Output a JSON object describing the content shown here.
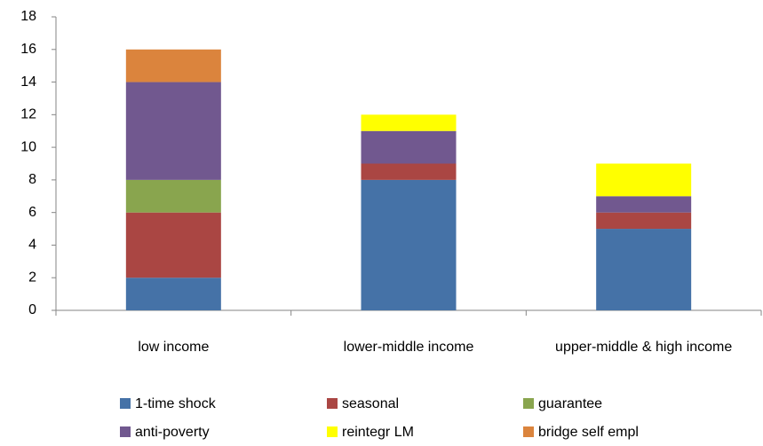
{
  "chart_data": {
    "type": "stacked-bar",
    "categories": [
      "low income",
      "lower-middle income",
      "upper-middle & high income"
    ],
    "series": [
      {
        "name": "1-time shock",
        "color": "#4572a7",
        "values": [
          2,
          8,
          5
        ]
      },
      {
        "name": "seasonal",
        "color": "#aa4643",
        "values": [
          4,
          1,
          1
        ]
      },
      {
        "name": "guarantee",
        "color": "#89a54e",
        "values": [
          2,
          0,
          0
        ]
      },
      {
        "name": "anti-poverty",
        "color": "#71588f",
        "values": [
          6,
          2,
          1
        ]
      },
      {
        "name": "reintegr LM",
        "color": "#ffff00",
        "values": [
          0,
          1,
          2
        ]
      },
      {
        "name": "bridge self empl",
        "color": "#db843d",
        "values": [
          2,
          0,
          0
        ]
      }
    ],
    "ylim": [
      0,
      18
    ],
    "yticks": [
      0,
      2,
      4,
      6,
      8,
      10,
      12,
      14,
      16,
      18
    ],
    "grid": false
  }
}
